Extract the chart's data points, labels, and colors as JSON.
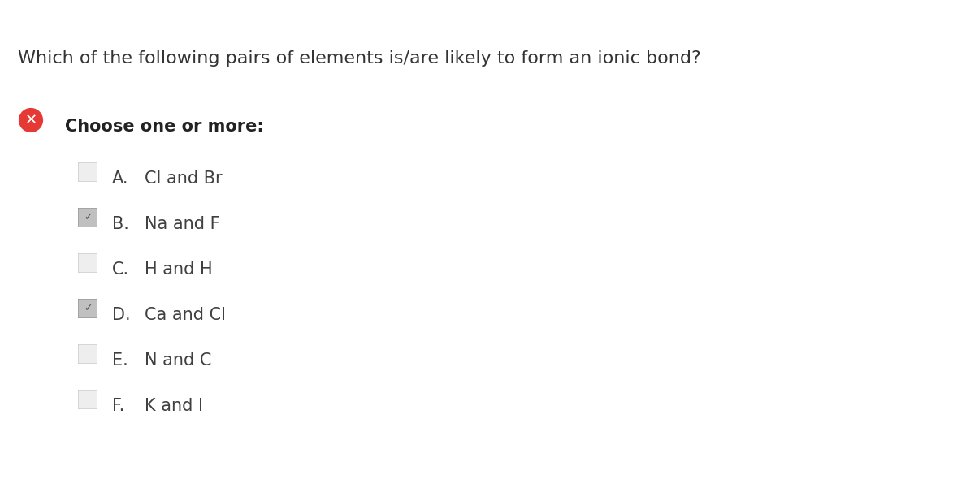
{
  "title": "Which of the following pairs of elements is/are likely to form an ionic bond?",
  "instruction": "Choose one or more:",
  "options": [
    {
      "letter": "A.",
      "text": "Cl and Br",
      "checked": false
    },
    {
      "letter": "B.",
      "text": "Na and F",
      "checked": true
    },
    {
      "letter": "C.",
      "text": "H and H",
      "checked": false
    },
    {
      "letter": "D.",
      "text": "Ca and Cl",
      "checked": true
    },
    {
      "letter": "E.",
      "text": "N and C",
      "checked": false
    },
    {
      "letter": "F.",
      "text": "K and I",
      "checked": false
    }
  ],
  "bg_color": "#ffffff",
  "title_color": "#333333",
  "instruction_color": "#222222",
  "option_text_color": "#404040",
  "checkbox_unchecked_fill": "#eeeeee",
  "checkbox_unchecked_edge": "#cccccc",
  "checkbox_checked_fill": "#c0c0c0",
  "checkbox_checked_edge": "#999999",
  "checkmark_color": "#555555",
  "red_circle_color": "#e53935",
  "left_bar_color": "#a8d4f5",
  "title_fontsize": 16,
  "instruction_fontsize": 15,
  "option_fontsize": 15
}
